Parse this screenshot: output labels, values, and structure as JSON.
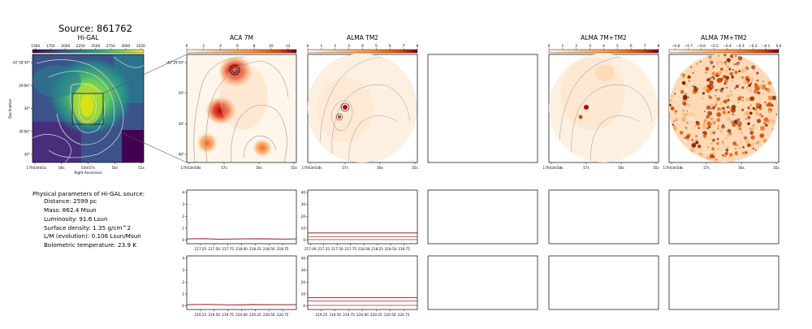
{
  "source_title": "Source: 861762",
  "physical": {
    "heading": "Physical parameters of Hi-GAL source:",
    "lines": [
      "Distance: 2599 pc",
      "Mass: 862.4 Msun",
      "Luminosity: 91.6 Lsun",
      "Surface density: 1.35 g/cm^2",
      "L/M (evolution): 0.106 Lsun/Msun",
      "Bolometric temperature: 23.9 K"
    ]
  },
  "colors": {
    "viridis": [
      "#440154",
      "#3b528b",
      "#21918c",
      "#5ec962",
      "#fde725"
    ],
    "oranges": [
      "#fff5eb",
      "#fdbe85",
      "#fd8d3c",
      "#d94701",
      "#7f0000"
    ],
    "spectrum_line": "#8b0000"
  },
  "chart_data": [
    {
      "type": "heatmap",
      "title": "Hi-GAL",
      "colorbar_ticks": [
        "1500",
        "1750",
        "2000",
        "2250",
        "2500",
        "2750",
        "3000",
        "3250"
      ],
      "colorbar_range": [
        1450,
        3300
      ],
      "colormap": "viridis",
      "xlabel": "Right Ascension",
      "ylabel": "Declination",
      "x_ticks": [
        "17h03m01s",
        "00s",
        "03m57s",
        "54s",
        "51s"
      ],
      "y_ticks": [
        "-42°28'30\"",
        "29'00\"",
        "30\"",
        "30'00\"",
        "30\""
      ]
    },
    {
      "type": "heatmap",
      "title": "ACA 7M",
      "colorbar_ticks": [
        "0",
        "2",
        "4",
        "6",
        "8",
        "10",
        "12"
      ],
      "colorbar_range": [
        0,
        13
      ],
      "colormap": "oranges",
      "x_ticks": [
        "17h03m58s",
        "57s",
        "56s",
        "55s"
      ],
      "y_ticks": [
        "-42°29'10\"",
        "20\"",
        "30\"",
        "40\""
      ]
    },
    {
      "type": "heatmap",
      "title": "ALMA TM2",
      "colorbar_ticks": [
        "0",
        "1",
        "2",
        "3",
        "4",
        "5",
        "6",
        "7",
        "8"
      ],
      "colorbar_range": [
        0,
        8
      ],
      "colormap": "oranges",
      "x_ticks": [
        "17h03m58s",
        "57s",
        "56s",
        "55s"
      ]
    },
    {
      "type": "heatmap",
      "title": "ALMA 7M+TM2",
      "colorbar_ticks": [
        "0",
        "1",
        "2",
        "3",
        "4",
        "5",
        "6",
        "7",
        "8"
      ],
      "colorbar_range": [
        0,
        8
      ],
      "colormap": "oranges",
      "x_ticks": [
        "17h03m58s",
        "57s",
        "56s",
        "55s"
      ]
    },
    {
      "type": "heatmap",
      "title": "ALMA 7M+TM2",
      "colorbar_ticks": [
        "−0.8",
        "−0.7",
        "−0.6",
        "−0.5",
        "−0.4",
        "−0.3",
        "−0.2",
        "−0.1",
        "0.0"
      ],
      "colorbar_range": [
        -0.85,
        0.0
      ],
      "colormap": "oranges",
      "x_ticks": [
        "17h03m58s",
        "57s",
        "56s",
        "55s"
      ]
    },
    {
      "type": "line",
      "panel": "ACA 7M spectrum (upper)",
      "x_ticks": [
        "217.25",
        "217.50",
        "217.75",
        "218.00",
        "218.25",
        "218.50",
        "218.75"
      ],
      "xlim": [
        217.0,
        219.0
      ],
      "y_ticks": [
        "0",
        "1",
        "2",
        "3",
        "4"
      ],
      "ylim": [
        -0.3,
        4.2
      ],
      "series": [
        {
          "values": [
            [
              217.0,
              0.1
            ],
            [
              217.3,
              0.12
            ],
            [
              217.6,
              0.08
            ],
            [
              218.0,
              0.1
            ],
            [
              218.4,
              0.11
            ],
            [
              218.8,
              0.09
            ],
            [
              219.0,
              0.1
            ]
          ]
        }
      ]
    },
    {
      "type": "line",
      "panel": "ALMA TM2 spectrum (upper)",
      "x_ticks": [
        "217.00",
        "217.25",
        "217.50",
        "217.75",
        "218.00",
        "218.25",
        "218.50",
        "218.75"
      ],
      "xlim": [
        216.95,
        219.0
      ],
      "y_ticks": [
        "0",
        "10",
        "20",
        "30",
        "40"
      ],
      "ylim": [
        -3,
        42
      ],
      "series": [
        {
          "values": [
            [
              216.95,
              6
            ],
            [
              219.0,
              6
            ]
          ]
        },
        {
          "values": [
            [
              216.95,
              3
            ],
            [
              219.0,
              3
            ]
          ]
        },
        {
          "values": [
            [
              216.95,
              0.5
            ],
            [
              219.0,
              0.5
            ]
          ]
        }
      ]
    },
    {
      "type": "line",
      "panel": "ACA 7M spectrum (lower)",
      "x_ticks": [
        "219.25",
        "219.50",
        "219.75",
        "220.00",
        "220.25",
        "220.50",
        "220.75"
      ],
      "xlim": [
        219.0,
        221.0
      ],
      "y_ticks": [
        "0",
        "1",
        "2",
        "3",
        "4"
      ],
      "ylim": [
        -0.3,
        4.2
      ],
      "series": [
        {
          "values": [
            [
              219.0,
              0.1
            ],
            [
              219.4,
              0.12
            ],
            [
              219.8,
              0.09
            ],
            [
              220.2,
              0.11
            ],
            [
              220.6,
              0.1
            ],
            [
              221.0,
              0.1
            ]
          ]
        }
      ]
    },
    {
      "type": "line",
      "panel": "ALMA TM2 spectrum (lower)",
      "x_ticks": [
        "219.25",
        "219.50",
        "219.75",
        "220.00",
        "220.25",
        "220.50",
        "220.75"
      ],
      "xlim": [
        219.0,
        221.0
      ],
      "y_ticks": [
        "0",
        "10",
        "20",
        "30",
        "40"
      ],
      "ylim": [
        -3,
        42
      ],
      "series": [
        {
          "values": [
            [
              219.0,
              7
            ],
            [
              221.0,
              7
            ]
          ]
        },
        {
          "values": [
            [
              219.0,
              4
            ],
            [
              221.0,
              4
            ]
          ]
        },
        {
          "values": [
            [
              219.0,
              0.5
            ],
            [
              221.0,
              0.5
            ]
          ]
        }
      ]
    }
  ]
}
